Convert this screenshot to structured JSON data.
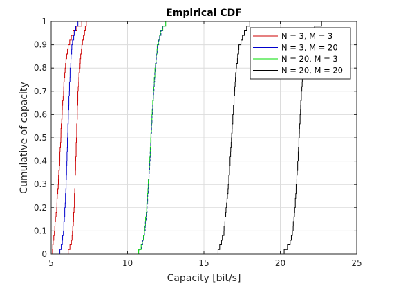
{
  "chart_data": {
    "type": "line",
    "title": "Empirical CDF",
    "xlabel": "Capacity [bit/s]",
    "ylabel": "Cumulative of capacity",
    "xlim": [
      5,
      25
    ],
    "ylim": [
      0,
      1
    ],
    "xticks": [
      5,
      10,
      15,
      20,
      25
    ],
    "yticks": [
      0,
      0.1,
      0.2,
      0.3,
      0.4,
      0.5,
      0.6,
      0.7,
      0.8,
      0.9,
      1
    ],
    "grid": true,
    "legend_position": "top-right",
    "series": [
      {
        "name": "N = 3, M = 3",
        "color": "#cc0000",
        "quantiles": [
          [
            0,
            5.05
          ],
          [
            0.1,
            5.2
          ],
          [
            0.2,
            5.35
          ],
          [
            0.3,
            5.45
          ],
          [
            0.4,
            5.55
          ],
          [
            0.5,
            5.62
          ],
          [
            0.6,
            5.7
          ],
          [
            0.7,
            5.8
          ],
          [
            0.8,
            5.9
          ],
          [
            0.9,
            6.1
          ],
          [
            0.97,
            6.5
          ],
          [
            1,
            7.0
          ]
        ]
      },
      {
        "name": "N = 3, M = 3",
        "color": "#cc0000",
        "quantiles": [
          [
            0,
            6.0
          ],
          [
            0.05,
            6.3
          ],
          [
            0.1,
            6.4
          ],
          [
            0.2,
            6.5
          ],
          [
            0.3,
            6.55
          ],
          [
            0.4,
            6.6
          ],
          [
            0.5,
            6.65
          ],
          [
            0.6,
            6.7
          ],
          [
            0.7,
            6.75
          ],
          [
            0.8,
            6.85
          ],
          [
            0.9,
            7.0
          ],
          [
            0.97,
            7.2
          ],
          [
            1,
            7.3
          ]
        ]
      },
      {
        "name": "N = 3, M = 20",
        "color": "#0000cc",
        "quantiles": [
          [
            0,
            5.5
          ],
          [
            0.05,
            5.7
          ],
          [
            0.1,
            5.8
          ],
          [
            0.2,
            5.9
          ],
          [
            0.3,
            5.97
          ],
          [
            0.4,
            6.02
          ],
          [
            0.5,
            6.07
          ],
          [
            0.6,
            6.12
          ],
          [
            0.7,
            6.18
          ],
          [
            0.8,
            6.25
          ],
          [
            0.9,
            6.35
          ],
          [
            0.97,
            6.55
          ],
          [
            1,
            6.75
          ]
        ]
      },
      {
        "name": "N = 20, M = 3",
        "color": "#00dd00",
        "quantiles": [
          [
            0,
            10.6
          ],
          [
            0.05,
            10.95
          ],
          [
            0.1,
            11.1
          ],
          [
            0.2,
            11.25
          ],
          [
            0.3,
            11.35
          ],
          [
            0.4,
            11.45
          ],
          [
            0.5,
            11.52
          ],
          [
            0.6,
            11.6
          ],
          [
            0.7,
            11.7
          ],
          [
            0.8,
            11.8
          ],
          [
            0.9,
            11.95
          ],
          [
            0.97,
            12.2
          ],
          [
            1,
            12.5
          ]
        ]
      },
      {
        "name": "N = 20, M = 3",
        "color": "#1f3fa0",
        "dashed": true,
        "quantiles": [
          [
            0,
            10.7
          ],
          [
            0.05,
            10.97
          ],
          [
            0.1,
            11.12
          ],
          [
            0.2,
            11.27
          ],
          [
            0.3,
            11.37
          ],
          [
            0.4,
            11.46
          ],
          [
            0.5,
            11.53
          ],
          [
            0.6,
            11.61
          ],
          [
            0.7,
            11.71
          ],
          [
            0.8,
            11.81
          ],
          [
            0.9,
            11.96
          ],
          [
            0.97,
            12.22
          ],
          [
            1,
            12.45
          ]
        ]
      },
      {
        "name": "N = 20, M = 20",
        "color": "#000000",
        "quantiles": [
          [
            0,
            15.8
          ],
          [
            0.05,
            16.1
          ],
          [
            0.1,
            16.3
          ],
          [
            0.2,
            16.45
          ],
          [
            0.3,
            16.6
          ],
          [
            0.4,
            16.7
          ],
          [
            0.5,
            16.8
          ],
          [
            0.6,
            16.9
          ],
          [
            0.7,
            17.0
          ],
          [
            0.8,
            17.1
          ],
          [
            0.9,
            17.3
          ],
          [
            0.97,
            17.7
          ],
          [
            1,
            18.0
          ]
        ]
      },
      {
        "name": "N = 20, M = 20",
        "color": "#000000",
        "quantiles": [
          [
            0,
            20.0
          ],
          [
            0.05,
            20.6
          ],
          [
            0.1,
            20.8
          ],
          [
            0.2,
            20.95
          ],
          [
            0.3,
            21.05
          ],
          [
            0.4,
            21.15
          ],
          [
            0.5,
            21.22
          ],
          [
            0.6,
            21.3
          ],
          [
            0.7,
            21.38
          ],
          [
            0.8,
            21.5
          ],
          [
            0.9,
            21.65
          ],
          [
            0.97,
            22.0
          ],
          [
            1,
            22.7
          ]
        ]
      }
    ],
    "legend": [
      {
        "label": "N = 3, M = 3",
        "color": "#cc0000"
      },
      {
        "label": "N = 3, M = 20",
        "color": "#0000cc"
      },
      {
        "label": "N = 20, M = 3",
        "color": "#00dd00"
      },
      {
        "label": "N = 20, M = 20",
        "color": "#000000"
      }
    ]
  }
}
